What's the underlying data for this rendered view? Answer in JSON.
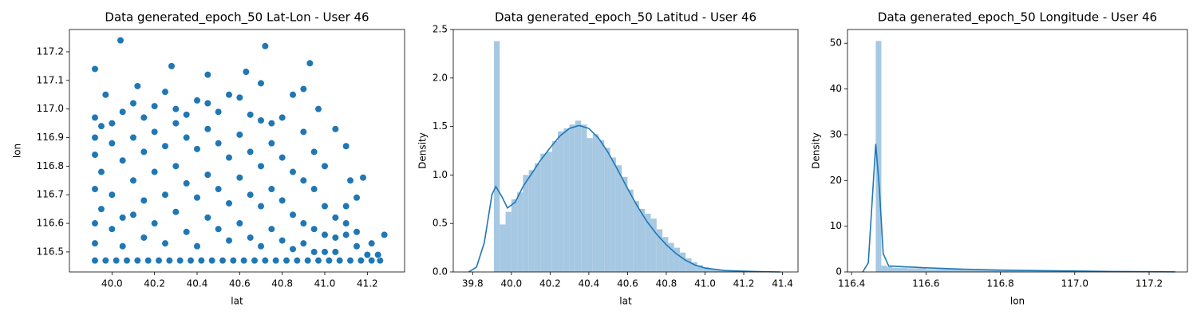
{
  "chart_data": [
    {
      "type": "scatter",
      "title": "Data generated_epoch_50 Lat-Lon - User 46",
      "x_label": "lat",
      "y_label": "lon",
      "color": "#1f77b4",
      "x": [
        39.92,
        39.97,
        40.02,
        40.07,
        40.12,
        40.17,
        40.22,
        40.27,
        40.32,
        40.37,
        40.42,
        40.47,
        40.52,
        40.57,
        40.62,
        40.67,
        40.72,
        40.77,
        40.82,
        40.87,
        40.92,
        40.97,
        41.02,
        41.07,
        41.12,
        41.17,
        41.22,
        41.26,
        39.92,
        39.92,
        39.92,
        39.92,
        39.92,
        39.92,
        39.95,
        39.95,
        39.95,
        40.0,
        40.0,
        40.0,
        40.0,
        40.05,
        40.05,
        40.05,
        40.05,
        40.1,
        40.1,
        40.1,
        40.1,
        40.15,
        40.15,
        40.15,
        40.15,
        40.2,
        40.2,
        40.2,
        40.2,
        40.25,
        40.25,
        40.25,
        40.25,
        40.3,
        40.3,
        40.3,
        40.3,
        40.35,
        40.35,
        40.35,
        40.35,
        40.4,
        40.4,
        40.4,
        40.4,
        40.45,
        40.45,
        40.45,
        40.45,
        40.5,
        40.5,
        40.5,
        40.5,
        40.55,
        40.55,
        40.55,
        40.55,
        40.6,
        40.6,
        40.6,
        40.6,
        40.65,
        40.65,
        40.65,
        40.65,
        40.7,
        40.7,
        40.7,
        40.7,
        40.75,
        40.75,
        40.75,
        40.75,
        40.8,
        40.8,
        40.8,
        40.8,
        40.85,
        40.85,
        40.85,
        40.85,
        40.9,
        40.9,
        40.9,
        40.9,
        40.95,
        40.95,
        40.95,
        40.95,
        41.0,
        41.0,
        41.0,
        41.0,
        41.05,
        41.05,
        41.05,
        41.1,
        41.1,
        41.1,
        41.15,
        41.15,
        41.2,
        40.04,
        39.92,
        40.28,
        40.72,
        40.93,
        40.12,
        40.45,
        40.63,
        40.7,
        39.97,
        40.9,
        41.28,
        41.22,
        41.18,
        41.25,
        41.1,
        41.05,
        40.97,
        41.15,
        41.12
      ],
      "values": [
        116.47,
        116.47,
        116.47,
        116.47,
        116.47,
        116.47,
        116.47,
        116.47,
        116.47,
        116.47,
        116.47,
        116.47,
        116.47,
        116.47,
        116.47,
        116.47,
        116.47,
        116.47,
        116.47,
        116.47,
        116.47,
        116.47,
        116.47,
        116.47,
        116.47,
        116.47,
        116.47,
        116.47,
        116.84,
        116.72,
        116.6,
        116.53,
        116.97,
        116.9,
        116.78,
        116.65,
        116.94,
        116.88,
        116.7,
        116.58,
        116.95,
        116.82,
        116.62,
        116.99,
        116.52,
        116.9,
        116.75,
        116.63,
        117.02,
        116.85,
        116.55,
        116.97,
        116.68,
        116.92,
        116.78,
        116.6,
        117.01,
        116.87,
        116.7,
        116.53,
        117.06,
        116.95,
        116.8,
        116.64,
        117.0,
        116.9,
        116.74,
        116.57,
        116.98,
        116.86,
        116.69,
        116.52,
        117.03,
        116.93,
        116.77,
        116.62,
        117.02,
        116.88,
        116.72,
        116.58,
        116.99,
        116.83,
        116.67,
        116.54,
        117.05,
        116.91,
        116.76,
        116.6,
        117.04,
        116.85,
        116.7,
        116.55,
        116.98,
        116.8,
        116.66,
        116.52,
        116.96,
        116.88,
        116.72,
        116.58,
        116.95,
        116.83,
        116.68,
        116.54,
        116.97,
        116.78,
        116.63,
        116.51,
        117.05,
        116.75,
        116.6,
        116.53,
        116.92,
        116.72,
        116.58,
        116.5,
        116.85,
        116.66,
        116.56,
        116.5,
        116.8,
        116.62,
        116.55,
        116.5,
        116.6,
        116.56,
        116.66,
        116.57,
        116.52,
        116.49,
        117.24,
        117.14,
        117.15,
        117.22,
        117.16,
        117.08,
        117.12,
        117.13,
        117.09,
        117.05,
        117.07,
        116.56,
        116.53,
        116.76,
        116.49,
        116.87,
        116.93,
        117.0,
        116.69,
        116.75
      ],
      "xlim": [
        39.8,
        41.375
      ],
      "ylim": [
        116.43,
        117.278
      ],
      "xticks": [
        {
          "value": 40,
          "label": "40.0"
        },
        40.2,
        40.4,
        40.6,
        40.8,
        {
          "value": 41,
          "label": "41.0"
        },
        41.2
      ],
      "yticks": [
        116.5,
        116.6,
        116.7,
        116.8,
        116.9,
        {
          "value": 117,
          "label": "117.0"
        },
        117.1,
        117.2
      ]
    },
    {
      "type": "histogram",
      "title": "Data generated_epoch_50 Latitud - User 46",
      "x_label": "lat",
      "y_label": "Density",
      "color": "#a6c8e2",
      "bins": [
        39.91,
        39.94,
        39.97,
        40.0,
        40.03,
        40.06,
        40.09,
        40.12,
        40.15,
        40.18,
        40.21,
        40.24,
        40.27,
        40.3,
        40.33,
        40.36,
        40.39,
        40.42,
        40.45,
        40.48,
        40.51,
        40.54,
        40.57,
        40.6,
        40.63,
        40.66,
        40.69,
        40.72,
        40.75,
        40.78,
        40.81,
        40.84,
        40.87,
        40.9,
        40.93,
        40.96,
        40.99,
        41.02,
        41.05,
        41.08,
        41.11,
        41.14,
        41.17,
        41.2,
        41.23,
        41.26,
        41.29
      ],
      "values": [
        2.38,
        0.49,
        0.62,
        0.75,
        0.82,
        1.0,
        1.05,
        1.12,
        1.22,
        1.24,
        1.35,
        1.45,
        1.48,
        1.52,
        1.56,
        1.52,
        1.38,
        1.42,
        1.36,
        1.28,
        1.18,
        1.1,
        0.98,
        0.85,
        0.73,
        0.65,
        0.6,
        0.55,
        0.44,
        0.36,
        0.3,
        0.25,
        0.2,
        0.14,
        0.1,
        0.07,
        0.05,
        0.03,
        0.02,
        0.01,
        0.01,
        0.01,
        0.005,
        0.004,
        0.003,
        0.002
      ],
      "kde": {
        "color": "#1f77b4",
        "x": [
          39.78,
          39.82,
          39.86,
          39.9,
          39.92,
          39.95,
          39.98,
          40.02,
          40.06,
          40.1,
          40.15,
          40.2,
          40.25,
          40.3,
          40.35,
          40.4,
          40.45,
          40.5,
          40.55,
          40.6,
          40.65,
          40.7,
          40.75,
          40.8,
          40.85,
          40.9,
          40.95,
          41.0,
          41.1,
          41.2,
          41.3,
          41.39
        ],
        "values": [
          0,
          0.05,
          0.3,
          0.8,
          0.88,
          0.78,
          0.66,
          0.72,
          0.88,
          1.0,
          1.15,
          1.28,
          1.4,
          1.48,
          1.51,
          1.48,
          1.38,
          1.23,
          1.05,
          0.86,
          0.68,
          0.52,
          0.39,
          0.28,
          0.19,
          0.12,
          0.07,
          0.04,
          0.015,
          0.008,
          0.003,
          0
        ]
      },
      "xlim": [
        39.7,
        41.48
      ],
      "ylim": [
        0,
        2.5
      ],
      "xticks": [
        39.8,
        {
          "value": 40,
          "label": "40.0"
        },
        40.2,
        40.4,
        40.6,
        40.8,
        {
          "value": 41,
          "label": "41.0"
        },
        41.2,
        41.4
      ],
      "yticks": [
        {
          "value": 0,
          "label": "0.0"
        },
        0.5,
        {
          "value": 1,
          "label": "1.0"
        },
        1.5,
        {
          "value": 2,
          "label": "2.0"
        },
        2.5
      ]
    },
    {
      "type": "histogram",
      "title": "Data generated_epoch_50 Longitude - User 46",
      "x_label": "lon",
      "y_label": "Density",
      "color": "#a6c8e2",
      "bins": [
        116.465,
        116.48,
        116.495,
        116.51,
        116.55,
        116.6,
        116.7,
        116.8,
        116.9,
        117.0,
        117.1,
        117.2,
        117.27
      ],
      "values": [
        50.5,
        1.4,
        1.1,
        0.9,
        0.8,
        0.6,
        0.4,
        0.3,
        0.2,
        0.15,
        0.1,
        0.05
      ],
      "kde": {
        "color": "#1f77b4",
        "x": [
          116.43,
          116.445,
          116.455,
          116.465,
          116.475,
          116.485,
          116.5,
          116.55,
          116.6,
          116.7,
          116.8,
          116.9,
          117.0,
          117.1,
          117.2,
          117.27
        ],
        "values": [
          0,
          2,
          15,
          28,
          18,
          4,
          1.3,
          1.1,
          0.9,
          0.6,
          0.4,
          0.3,
          0.2,
          0.1,
          0.05,
          0.02
        ]
      },
      "xlim": [
        116.389,
        117.303
      ],
      "ylim": [
        0,
        53
      ],
      "xticks": [
        116.4,
        116.6,
        116.8,
        {
          "value": 117,
          "label": "117.0"
        },
        117.2
      ],
      "yticks": [
        0,
        10,
        20,
        30,
        40,
        50
      ]
    }
  ]
}
